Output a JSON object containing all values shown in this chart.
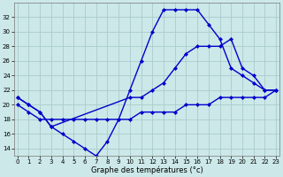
{
  "title": "",
  "xlabel": "Graphe des températures (°c)",
  "bg_color": "#cce8e8",
  "grid_color": "#aacccc",
  "line_color": "#0000cc",
  "marker": "D",
  "markersize": 2,
  "linewidth": 1.0,
  "series": {
    "line1_x": [
      0,
      1,
      2,
      3,
      4,
      5,
      6,
      7,
      8,
      9,
      10,
      11,
      12,
      13,
      14,
      15,
      16,
      17,
      18,
      19,
      20,
      21,
      22,
      23
    ],
    "line1_y": [
      21,
      20,
      19,
      17,
      16,
      15,
      14,
      13,
      15,
      18,
      22,
      26,
      30,
      33,
      33,
      33,
      33,
      31,
      29,
      25,
      24,
      23,
      22,
      22
    ],
    "line2_x": [
      0,
      1,
      2,
      3,
      10,
      11,
      12,
      13,
      14,
      15,
      16,
      17,
      18,
      19,
      20,
      21,
      22,
      23
    ],
    "line2_y": [
      21,
      20,
      19,
      17,
      21,
      21,
      22,
      23,
      25,
      27,
      28,
      28,
      28,
      29,
      25,
      24,
      22,
      22
    ],
    "line3_x": [
      0,
      1,
      2,
      3,
      4,
      5,
      6,
      7,
      8,
      9,
      10,
      11,
      12,
      13,
      14,
      15,
      16,
      17,
      18,
      19,
      20,
      21,
      22,
      23
    ],
    "line3_y": [
      20,
      19,
      18,
      18,
      18,
      18,
      18,
      18,
      18,
      18,
      18,
      19,
      19,
      19,
      19,
      20,
      20,
      20,
      21,
      21,
      21,
      21,
      21,
      22
    ]
  },
  "ylim": [
    13,
    34
  ],
  "yticks": [
    14,
    16,
    18,
    20,
    22,
    24,
    26,
    28,
    30,
    32
  ],
  "xticks": [
    0,
    1,
    2,
    3,
    4,
    5,
    6,
    7,
    8,
    9,
    10,
    11,
    12,
    13,
    14,
    15,
    16,
    17,
    18,
    19,
    20,
    21,
    22,
    23
  ],
  "xlim": [
    -0.3,
    23.3
  ],
  "tick_fontsize": 5.0,
  "xlabel_fontsize": 6.0
}
